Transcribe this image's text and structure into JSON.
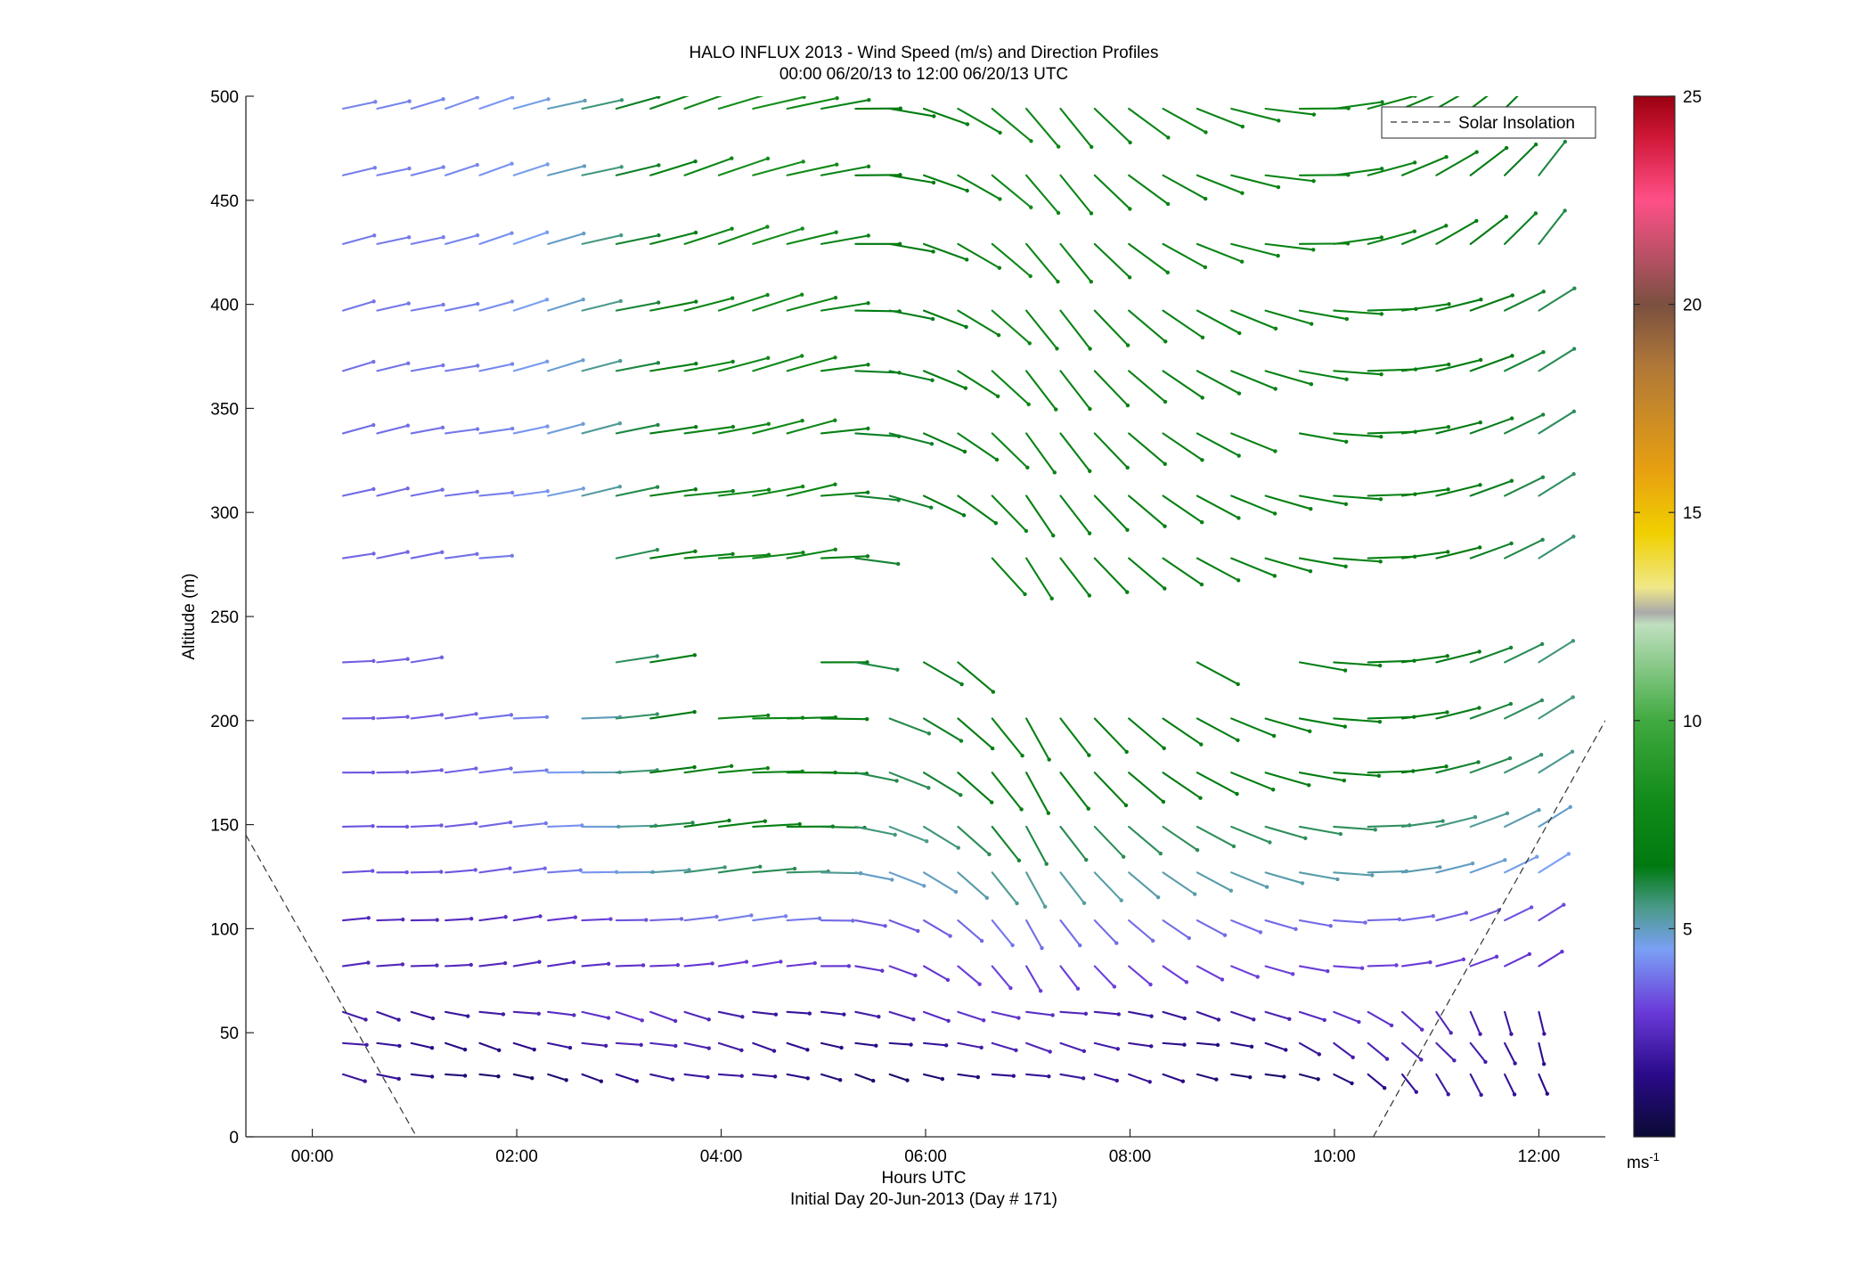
{
  "chart_data": {
    "type": "wind-barb",
    "title": "HALO INFLUX 2013 - Wind Speed (m/s) and Direction Profiles",
    "subtitle": "00:00 06/20/13 to 12:00 06/20/13  UTC",
    "xlabel": "Hours UTC",
    "xlabel2": "Initial Day 20-Jun-2013 (Day # 171)",
    "ylabel": "Altitude (m)",
    "xlim": [
      -0.65,
      12.65
    ],
    "ylim": [
      0,
      500
    ],
    "x_ticks": [
      0,
      2,
      4,
      6,
      8,
      10,
      12
    ],
    "x_tick_labels": [
      "00:00",
      "02:00",
      "04:00",
      "06:00",
      "08:00",
      "10:00",
      "12:00"
    ],
    "y_ticks": [
      0,
      50,
      100,
      150,
      200,
      250,
      300,
      350,
      400,
      450,
      500
    ],
    "y_tick_labels": [
      "0",
      "50",
      "100",
      "150",
      "200",
      "250",
      "300",
      "350",
      "400",
      "450",
      "500"
    ],
    "legend": {
      "label": "Solar Insolation",
      "placement": "top-right"
    },
    "colorbar": {
      "label": "ms",
      "label_sup": "-1",
      "range": [
        0,
        25
      ],
      "ticks": [
        5,
        10,
        15,
        20,
        25
      ],
      "tick_labels": [
        "5",
        "10",
        "15",
        "20",
        "25"
      ],
      "colormap": [
        {
          "v": 0,
          "c": "#0a0a33"
        },
        {
          "v": 1.5,
          "c": "#2a0a8a"
        },
        {
          "v": 3,
          "c": "#6a3ad8"
        },
        {
          "v": 4.5,
          "c": "#7aa0f5"
        },
        {
          "v": 5.5,
          "c": "#4a9a8a"
        },
        {
          "v": 6.5,
          "c": "#007a10"
        },
        {
          "v": 8,
          "c": "#108a18"
        },
        {
          "v": 10,
          "c": "#40aa40"
        },
        {
          "v": 12.3,
          "c": "#bfe0bf"
        },
        {
          "v": 12.6,
          "c": "#aaaaaa"
        },
        {
          "v": 13.2,
          "c": "#f0e888"
        },
        {
          "v": 14.5,
          "c": "#f0d000"
        },
        {
          "v": 16,
          "c": "#e8a010"
        },
        {
          "v": 18.5,
          "c": "#b07838"
        },
        {
          "v": 20,
          "c": "#7a5040"
        },
        {
          "v": 21,
          "c": "#b05060"
        },
        {
          "v": 22.5,
          "c": "#ff5088"
        },
        {
          "v": 24,
          "c": "#d01838"
        },
        {
          "v": 25,
          "c": "#9a0010"
        }
      ]
    },
    "solar_insolation": [
      {
        "x": [
          -0.65,
          1.02
        ],
        "y": [
          145,
          0
        ]
      },
      {
        "x": [
          10.38,
          12.65
        ],
        "y": [
          0,
          200
        ]
      }
    ],
    "wind_grid": {
      "altitudes": [
        30,
        45,
        60,
        82,
        104,
        127,
        149,
        175,
        201,
        228,
        278,
        308,
        338,
        368,
        397,
        429,
        462,
        494
      ],
      "time_range": [
        0.3,
        12.0
      ],
      "n_times": 36,
      "gaps": [
        {
          "alt": 228,
          "from": 1.0,
          "to": 2.95
        },
        {
          "alt": 228,
          "from": 3.4,
          "to": 4.95
        },
        {
          "alt": 228,
          "from": 5.35,
          "to": 5.95
        },
        {
          "alt": 228,
          "from": 6.5,
          "to": 8.6
        },
        {
          "alt": 228,
          "from": 8.7,
          "to": 9.45
        },
        {
          "alt": 278,
          "from": 1.7,
          "to": 2.95
        },
        {
          "alt": 278,
          "from": 5.4,
          "to": 6.35
        },
        {
          "alt": 201,
          "from": 2.3,
          "to": 2.35
        },
        {
          "alt": 201,
          "from": 2.7,
          "to": 2.95
        },
        {
          "alt": 201,
          "from": 3.4,
          "to": 3.95
        },
        {
          "alt": 201,
          "from": 5.0,
          "to": 5.6
        },
        {
          "alt": 338,
          "from": 9.05,
          "to": 9.4
        },
        {
          "alt": 494,
          "from": 11.75,
          "to": 12.1
        },
        {
          "alt": 308,
          "from": 0.45,
          "to": 0.55
        }
      ]
    }
  }
}
